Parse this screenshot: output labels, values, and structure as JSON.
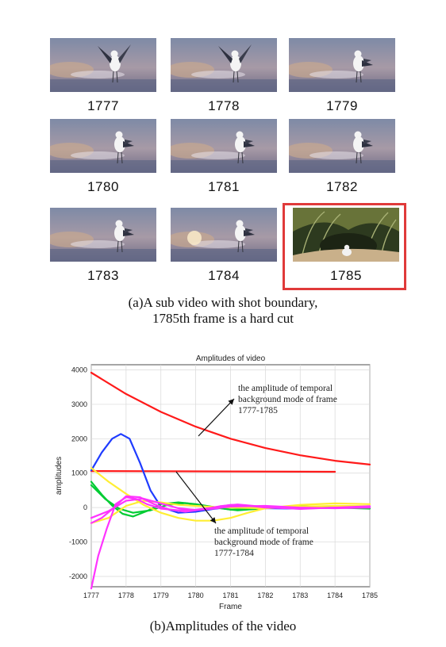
{
  "frames": [
    {
      "label": "1777",
      "scene": "gull"
    },
    {
      "label": "1778",
      "scene": "gull"
    },
    {
      "label": "1779",
      "scene": "gull"
    },
    {
      "label": "1780",
      "scene": "gull"
    },
    {
      "label": "1781",
      "scene": "gull"
    },
    {
      "label": "1782",
      "scene": "gull"
    },
    {
      "label": "1783",
      "scene": "gull"
    },
    {
      "label": "1784",
      "scene": "gull"
    },
    {
      "label": "1785",
      "scene": "grass-cut",
      "highlighted": true
    }
  ],
  "caption_a": {
    "line1": "(a)A sub video with shot boundary,",
    "line2": "1785th frame is a hard cut"
  },
  "caption_b": "(b)Amplitudes of the video",
  "colors": {
    "red": "#ff1a1a",
    "blue": "#1f3cff",
    "green": "#00cc33",
    "yellow": "#ffee33",
    "magenta": "#ff33ff",
    "highlight": "#e03a3a"
  },
  "chart_data": {
    "type": "line",
    "title": "Amplitudes of video",
    "xlabel": "Frame",
    "ylabel": "amplitudes",
    "xlim": [
      1777,
      1785
    ],
    "ylim": [
      -2300,
      4150
    ],
    "xticks": [
      "1777",
      "1778",
      "1779",
      "1780",
      "1781",
      "1782",
      "1783",
      "1784",
      "1785"
    ],
    "yticks": [
      "4000",
      "3000",
      "2000",
      "1000",
      "0",
      "-1000",
      "-2000"
    ],
    "grid": true,
    "series": [
      {
        "color": "red",
        "x": [
          1777,
          1778,
          1779,
          1780,
          1781,
          1782,
          1783,
          1784,
          1785
        ],
        "y": [
          3920,
          3300,
          2780,
          2350,
          2000,
          1730,
          1520,
          1360,
          1250
        ]
      },
      {
        "color": "red",
        "x": [
          1777,
          1784
        ],
        "y": [
          1060,
          1040
        ]
      },
      {
        "color": "blue",
        "x": [
          1777,
          1777.3,
          1777.6,
          1777.85,
          1778.1,
          1778.4,
          1778.7,
          1779,
          1779.5,
          1780,
          1780.5,
          1781,
          1781.5,
          1782,
          1783,
          1784,
          1785
        ],
        "y": [
          1080,
          1600,
          2000,
          2140,
          2000,
          1300,
          500,
          20,
          -150,
          -120,
          -40,
          20,
          10,
          -20,
          -30,
          10,
          20
        ]
      },
      {
        "color": "green",
        "x": [
          1777,
          1777.3,
          1777.6,
          1777.9,
          1778.2,
          1778.6,
          1779,
          1779.5,
          1780,
          1780.5,
          1781,
          1782,
          1783,
          1784,
          1785
        ],
        "y": [
          750,
          380,
          60,
          -180,
          -260,
          -100,
          100,
          150,
          100,
          20,
          -60,
          0,
          40,
          0,
          -30
        ]
      },
      {
        "color": "green",
        "x": [
          1777,
          1777.4,
          1777.8,
          1778.2,
          1778.7,
          1779.2,
          1779.7,
          1780.2,
          1780.7,
          1781.2,
          1782,
          1783,
          1784,
          1785
        ],
        "y": [
          650,
          250,
          -30,
          -150,
          -80,
          80,
          130,
          60,
          -20,
          -80,
          -20,
          30,
          10,
          -10
        ]
      },
      {
        "color": "yellow",
        "x": [
          1777,
          1777.5,
          1778,
          1778.5,
          1779,
          1779.5,
          1780,
          1780.5,
          1781,
          1781.5,
          1782,
          1783,
          1784,
          1785
        ],
        "y": [
          1150,
          750,
          400,
          80,
          -150,
          -300,
          -380,
          -380,
          -300,
          -150,
          -20,
          80,
          120,
          100
        ]
      },
      {
        "color": "yellow",
        "x": [
          1777,
          1777.5,
          1778,
          1778.5,
          1779,
          1779.5,
          1780,
          1780.5,
          1781,
          1782,
          1783,
          1784,
          1785
        ],
        "y": [
          -450,
          -300,
          50,
          200,
          150,
          80,
          50,
          20,
          0,
          -20,
          30,
          50,
          40
        ]
      },
      {
        "color": "magenta",
        "x": [
          1777,
          1777.2,
          1777.45,
          1777.7,
          1778,
          1778.3,
          1778.6,
          1779,
          1779.5,
          1780,
          1780.5,
          1781,
          1781.5,
          1782,
          1783,
          1784,
          1785
        ],
        "y": [
          -2350,
          -1400,
          -600,
          100,
          300,
          250,
          100,
          -30,
          -80,
          -60,
          0,
          80,
          60,
          0,
          -30,
          0,
          20
        ]
      },
      {
        "color": "magenta",
        "x": [
          1777,
          1777.3,
          1777.6,
          1778,
          1778.4,
          1778.8,
          1779.2,
          1779.7,
          1780.2,
          1780.7,
          1781.2,
          1782,
          1783,
          1784,
          1785
        ],
        "y": [
          -450,
          -300,
          -50,
          330,
          300,
          100,
          -50,
          -120,
          -50,
          40,
          90,
          20,
          -40,
          0,
          40
        ]
      },
      {
        "color": "magenta",
        "x": [
          1777,
          1777.5,
          1778,
          1778.5,
          1779,
          1779.5,
          1780,
          1780.5,
          1781,
          1782,
          1783,
          1784,
          1785
        ],
        "y": [
          -300,
          -100,
          200,
          260,
          120,
          -20,
          -70,
          -30,
          30,
          50,
          0,
          -20,
          0
        ]
      }
    ],
    "annotations": [
      {
        "text": [
          "the amplitude of temporal",
          "background mode of frame",
          "1777-1785"
        ],
        "points_to": "upper red curve"
      },
      {
        "text": [
          "the amplitude of temporal",
          "background mode of frame",
          "1777-1784"
        ],
        "points_to": "lower red line"
      }
    ]
  }
}
